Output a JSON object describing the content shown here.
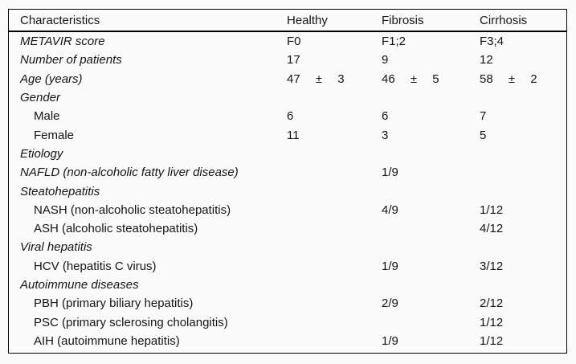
{
  "table": {
    "columns": [
      "Characteristics",
      "Healthy",
      "Fibrosis",
      "Cirrhosis"
    ],
    "rows": [
      {
        "label": "METAVIR score",
        "italic": true,
        "indent": false,
        "values": [
          "F0",
          "F1;2",
          "F3;4"
        ]
      },
      {
        "label": "Number of patients",
        "italic": true,
        "indent": false,
        "values": [
          "17",
          "9",
          "12"
        ]
      },
      {
        "label": "Age (years)",
        "italic": true,
        "indent": false,
        "values": [
          "47 ± 3",
          "46 ± 5",
          "58 ± 2"
        ]
      },
      {
        "label": "Gender",
        "italic": true,
        "indent": false,
        "values": [
          "",
          "",
          ""
        ]
      },
      {
        "label": "Male",
        "italic": false,
        "indent": true,
        "values": [
          "6",
          "6",
          "7"
        ]
      },
      {
        "label": "Female",
        "italic": false,
        "indent": true,
        "values": [
          "11",
          "3",
          "5"
        ]
      },
      {
        "label": "Etiology",
        "italic": true,
        "indent": false,
        "values": [
          "",
          "",
          ""
        ]
      },
      {
        "label": "NAFLD (non-alcoholic fatty liver disease)",
        "italic": true,
        "indent": false,
        "values": [
          "",
          "1/9",
          ""
        ]
      },
      {
        "label": "Steatohepatitis",
        "italic": true,
        "indent": false,
        "values": [
          "",
          "",
          ""
        ]
      },
      {
        "label": "NASH (non-alcoholic steatohepatitis)",
        "italic": false,
        "indent": true,
        "values": [
          "",
          "4/9",
          "1/12"
        ]
      },
      {
        "label": "ASH (alcoholic steatohepatitis)",
        "italic": false,
        "indent": true,
        "values": [
          "",
          "",
          "4/12"
        ]
      },
      {
        "label": "Viral hepatitis",
        "italic": true,
        "indent": false,
        "values": [
          "",
          "",
          ""
        ]
      },
      {
        "label": "HCV (hepatitis C virus)",
        "italic": false,
        "indent": true,
        "values": [
          "",
          "1/9",
          "3/12"
        ]
      },
      {
        "label": "Autoimmune diseases",
        "italic": true,
        "indent": false,
        "values": [
          "",
          "",
          ""
        ]
      },
      {
        "label": "PBH (primary biliary hepatitis)",
        "italic": false,
        "indent": true,
        "values": [
          "",
          "2/9",
          "2/12"
        ]
      },
      {
        "label": "PSC (primary sclerosing cholangitis)",
        "italic": false,
        "indent": true,
        "values": [
          "",
          "",
          "1/12"
        ]
      },
      {
        "label": "AIH (autoimmune hepatitis)",
        "italic": false,
        "indent": true,
        "values": [
          "",
          "1/9",
          "1/12"
        ]
      }
    ],
    "colors": {
      "background": "#fbfbfb",
      "text": "#141414",
      "rule": "#000000"
    }
  }
}
